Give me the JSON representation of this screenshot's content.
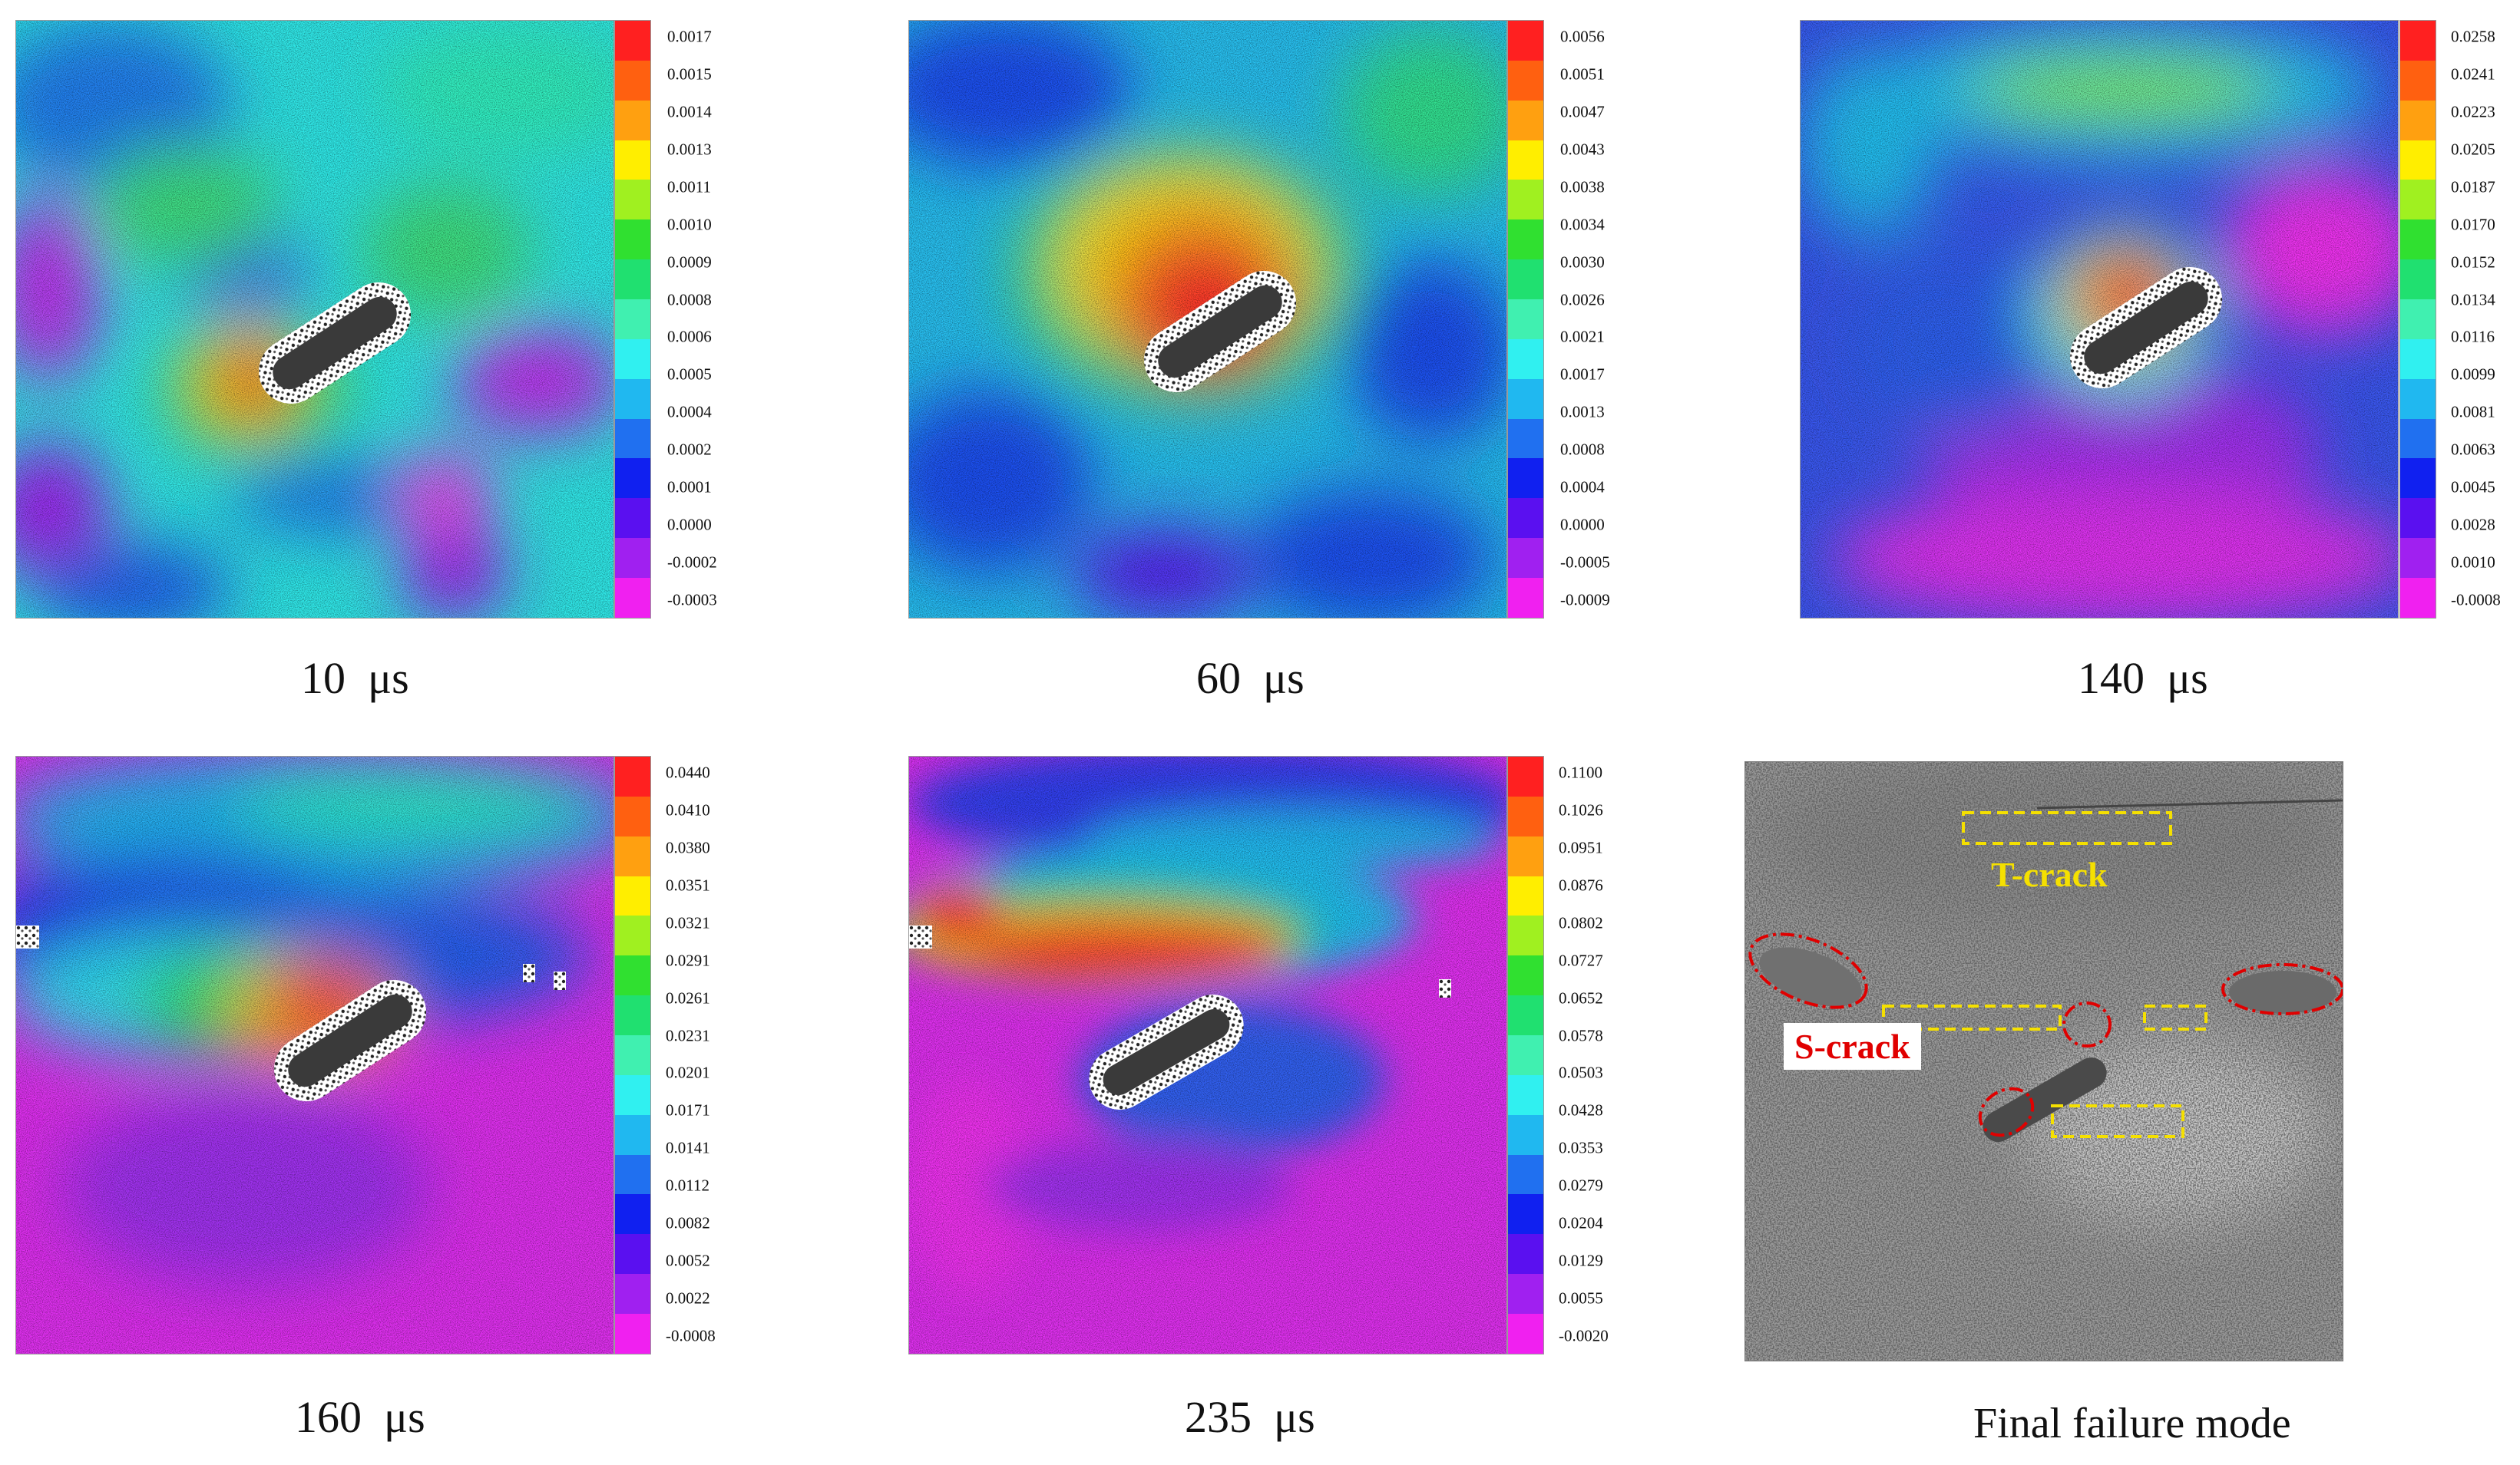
{
  "colors": {
    "scale": [
      "#ff2020",
      "#ff6010",
      "#ffa010",
      "#ffee00",
      "#a0f020",
      "#30e030",
      "#20e070",
      "#40f0b0",
      "#30f0f0",
      "#20b8f0",
      "#2070f0",
      "#1020f0",
      "#5a10f0",
      "#a020f0",
      "#f020f0"
    ],
    "t_crack": "#f5e000",
    "s_crack": "#e00000"
  },
  "panels": [
    {
      "caption_value": "10",
      "caption_unit": "μs",
      "scale_ticks": [
        "0.0017",
        "0.0015",
        "0.0014",
        "0.0013",
        "0.0011",
        "0.0010",
        "0.0009",
        "0.0008",
        "0.0006",
        "0.0005",
        "0.0004",
        "0.0002",
        "0.0001",
        "0.0000",
        "-0.0002",
        "-0.0003"
      ]
    },
    {
      "caption_value": "60",
      "caption_unit": "μs",
      "scale_ticks": [
        "0.0056",
        "0.0051",
        "0.0047",
        "0.0043",
        "0.0038",
        "0.0034",
        "0.0030",
        "0.0026",
        "0.0021",
        "0.0017",
        "0.0013",
        "0.0008",
        "0.0004",
        "0.0000",
        "-0.0005",
        "-0.0009"
      ]
    },
    {
      "caption_value": "140",
      "caption_unit": "μs",
      "scale_ticks": [
        "0.0258",
        "0.0241",
        "0.0223",
        "0.0205",
        "0.0187",
        "0.0170",
        "0.0152",
        "0.0134",
        "0.0116",
        "0.0099",
        "0.0081",
        "0.0063",
        "0.0045",
        "0.0028",
        "0.0010",
        "-0.0008"
      ]
    },
    {
      "caption_value": "160",
      "caption_unit": "μs",
      "scale_ticks": [
        "0.0440",
        "0.0410",
        "0.0380",
        "0.0351",
        "0.0321",
        "0.0291",
        "0.0261",
        "0.0231",
        "0.0201",
        "0.0171",
        "0.0141",
        "0.0112",
        "0.0082",
        "0.0052",
        "0.0022",
        "-0.0008"
      ]
    },
    {
      "caption_value": "235",
      "caption_unit": "μs",
      "scale_ticks": [
        "0.1100",
        "0.1026",
        "0.0951",
        "0.0876",
        "0.0802",
        "0.0727",
        "0.0652",
        "0.0578",
        "0.0503",
        "0.0428",
        "0.0353",
        "0.0279",
        "0.0204",
        "0.0129",
        "0.0055",
        "-0.0020"
      ]
    }
  ],
  "final": {
    "caption": "Final failure mode",
    "t_crack_label": "T-crack",
    "s_crack_label": "S-crack"
  }
}
